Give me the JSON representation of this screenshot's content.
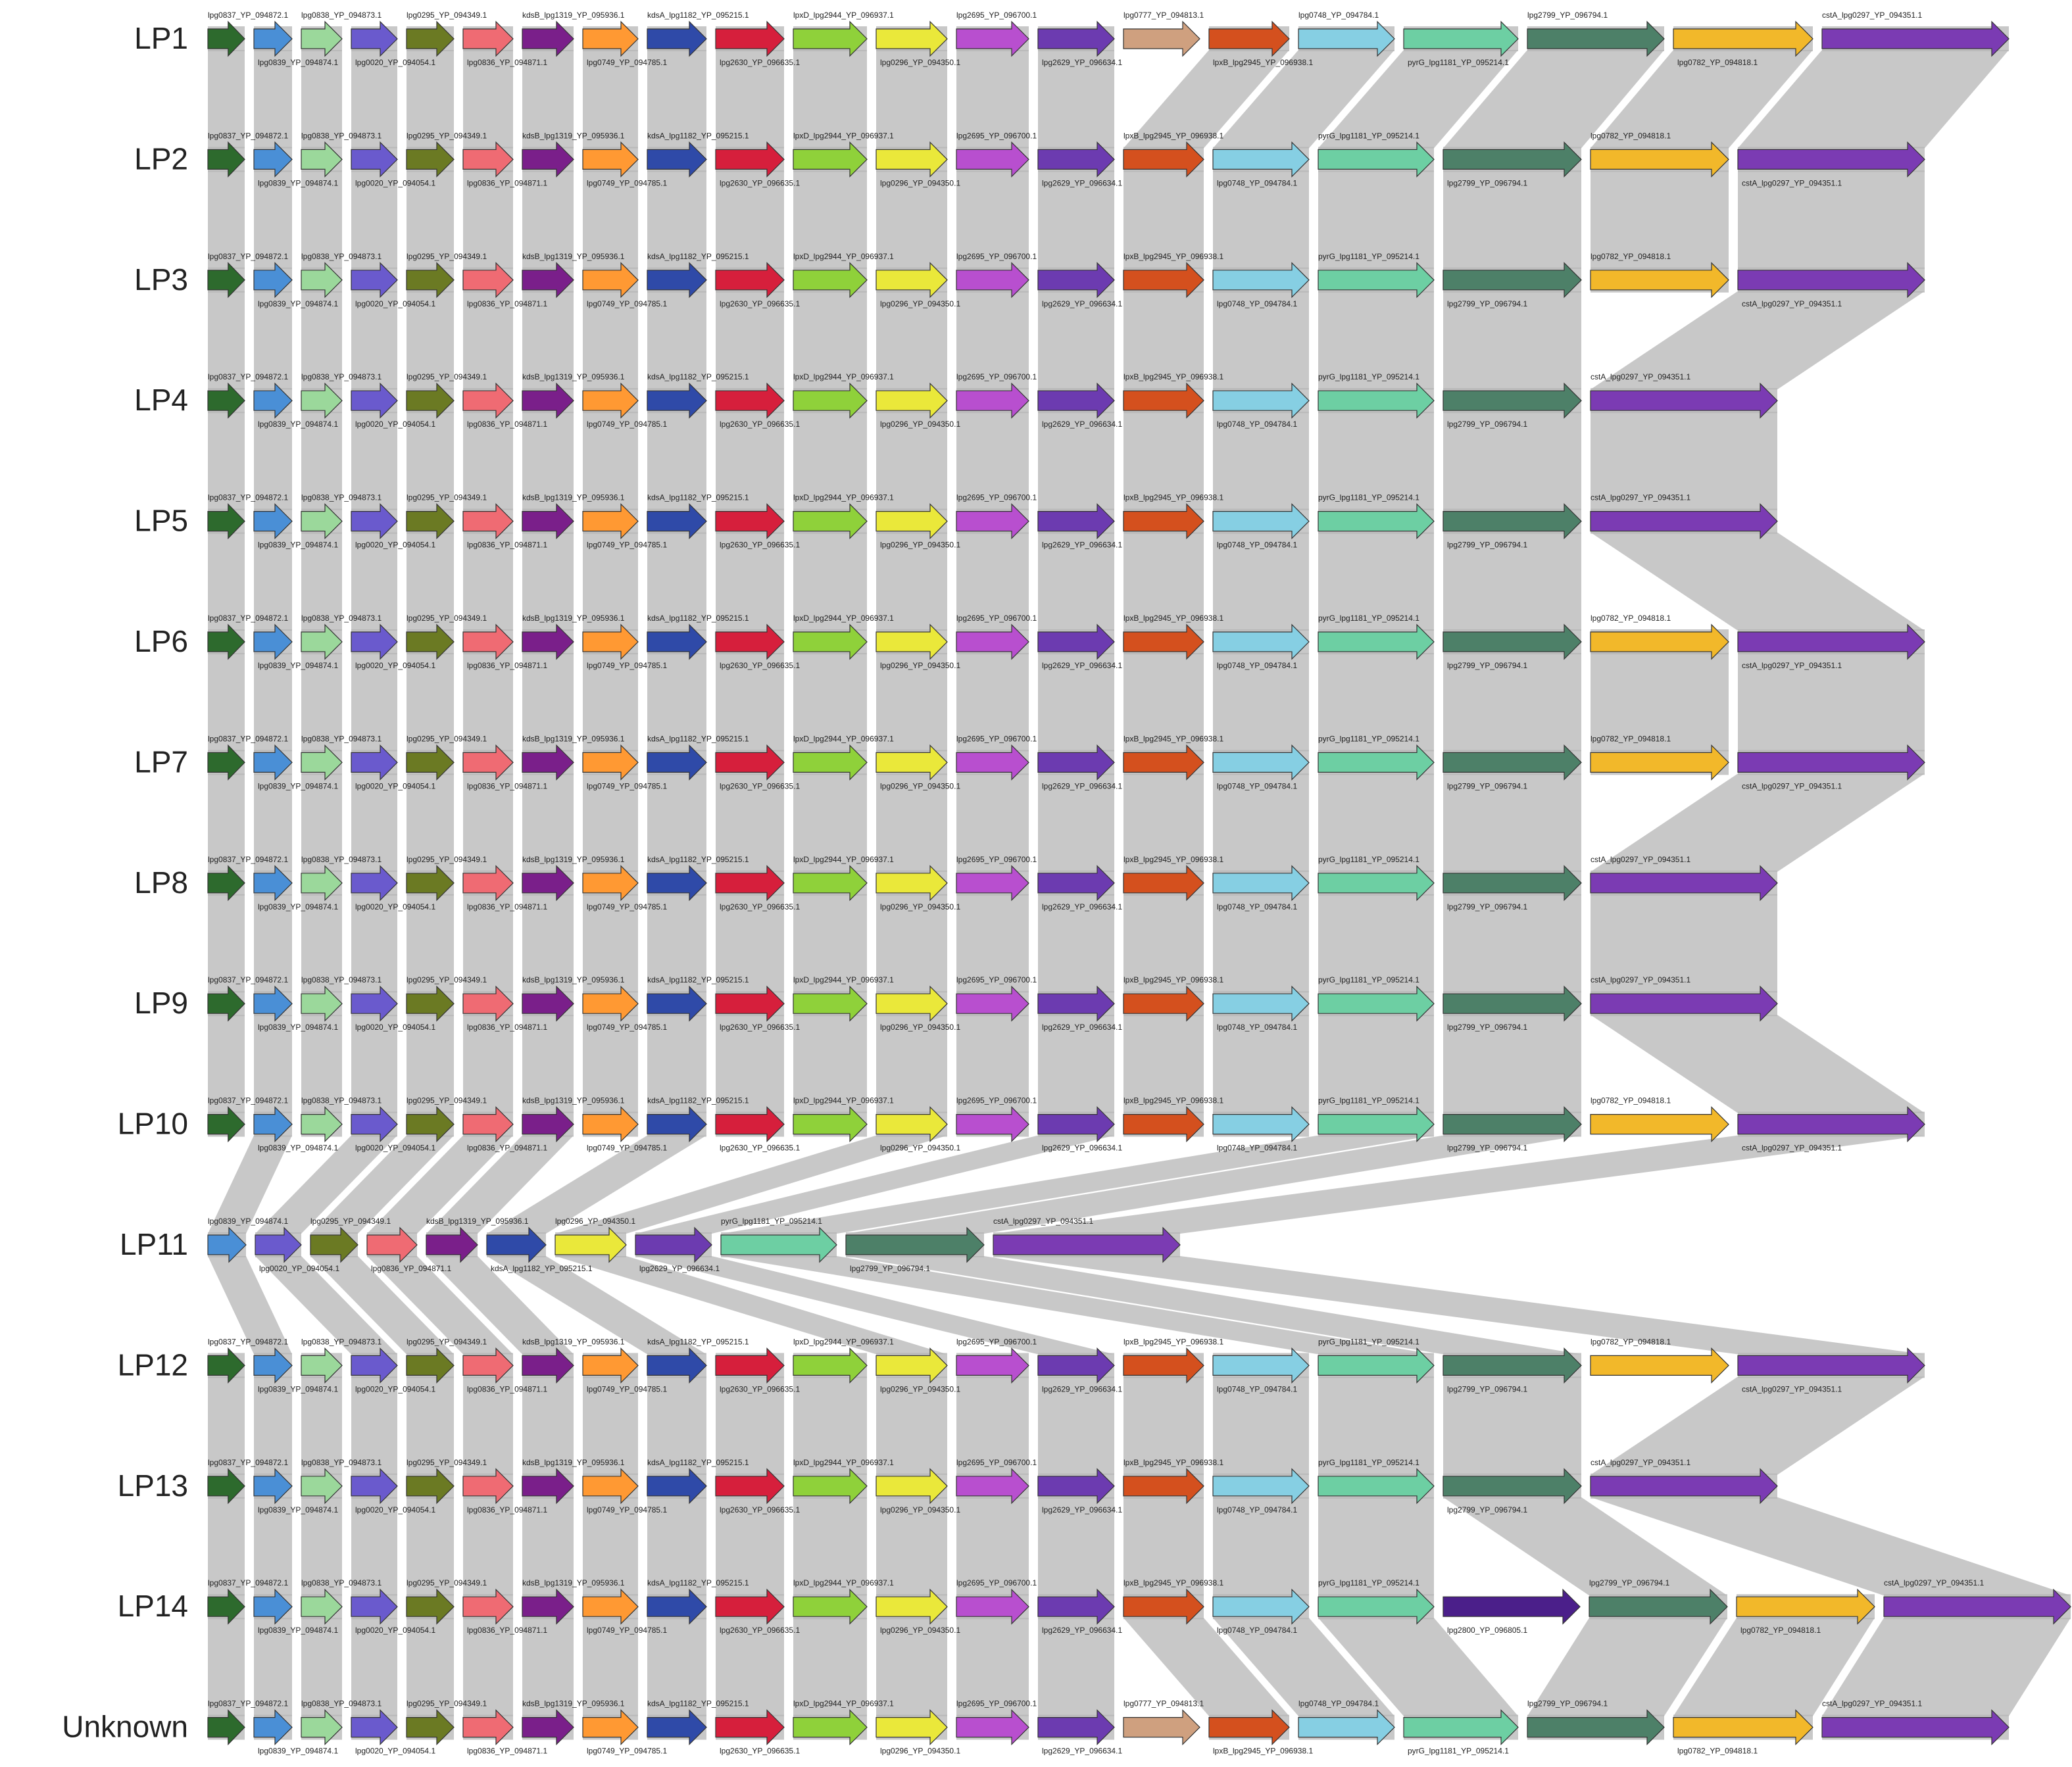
{
  "figure": {
    "type": "gene-synteny-comparison",
    "background": "#ffffff",
    "link_color": "#b3b3b3",
    "gene_order_reference": [
      "lpg0837_YP_094872.1",
      "lpg0839_YP_094874.1",
      "lpg0838_YP_094873.1",
      "lpg0020_YP_094054.1",
      "lpg0295_YP_094349.1",
      "lpg0836_YP_094871.1",
      "kdsB_lpg1319_YP_095936.1",
      "lpg0749_YP_094785.1",
      "kdsA_lpg1182_YP_095215.1",
      "lpg2630_YP_096635.1",
      "lpxD_lpg2944_YP_096937.1",
      "lpg0296_YP_094350.1",
      "lpg2695_YP_096700.1",
      "lpg2629_YP_096634.1",
      "lpg0777_YP_094813.1",
      "lpxB_lpg2945_YP_096938.1",
      "lpg0748_YP_094784.1",
      "pyrG_lpg1181_YP_095214.1",
      "lpg2799_YP_096794.1",
      "lpg0782_YP_094818.1",
      "cstA_lpg0297_YP_094351.1",
      "lpg2800_YP_096805.1"
    ]
  },
  "genes": {
    "lpg0837": {
      "label": "lpg0837_YP_094872.1",
      "color": "#2d6a2d"
    },
    "lpg0839": {
      "label": "lpg0839_YP_094874.1",
      "color": "#4a8fd6"
    },
    "lpg0838": {
      "label": "lpg0838_YP_094873.1",
      "color": "#9bd89b"
    },
    "lpg0020": {
      "label": "lpg0020_YP_094054.1",
      "color": "#6a5acd"
    },
    "lpg0295": {
      "label": "lpg0295_YP_094349.1",
      "color": "#6b7a23"
    },
    "lpg0836": {
      "label": "lpg0836_YP_094871.1",
      "color": "#ef6b73"
    },
    "kdsB": {
      "label": "kdsB_lpg1319_YP_095936.1",
      "color": "#7a1f8a"
    },
    "lpg0749": {
      "label": "lpg0749_YP_094785.1",
      "color": "#ff9933"
    },
    "kdsA": {
      "label": "kdsA_lpg1182_YP_095215.1",
      "color": "#2f4aa8"
    },
    "lpg2630": {
      "label": "lpg2630_YP_096635.1",
      "color": "#d61f3c"
    },
    "lpxD": {
      "label": "lpxD_lpg2944_YP_096937.1",
      "color": "#8fd13a"
    },
    "lpg0296": {
      "label": "lpg0296_YP_094350.1",
      "color": "#eae83a"
    },
    "lpg2695": {
      "label": "lpg2695_YP_096700.1",
      "color": "#b84fcf"
    },
    "lpg2629": {
      "label": "lpg2629_YP_096634.1",
      "color": "#6c3bb0"
    },
    "lpg0777": {
      "label": "lpg0777_YP_094813.1",
      "color": "#cfa07f"
    },
    "lpxB": {
      "label": "lpxB_lpg2945_YP_096938.1",
      "color": "#d4501e"
    },
    "lpg0748": {
      "label": "lpg0748_YP_094784.1",
      "color": "#86cfe3"
    },
    "pyrG": {
      "label": "pyrG_lpg1181_YP_095214.1",
      "color": "#6dcfa3"
    },
    "lpg2799": {
      "label": "lpg2799_YP_096794.1",
      "color": "#4d8068"
    },
    "lpg0782": {
      "label": "lpg0782_YP_094818.1",
      "color": "#f2b82a"
    },
    "cstA": {
      "label": "cstA_lpg0297_YP_094351.1",
      "color": "#7b3bb3"
    },
    "lpg2800": {
      "label": "lpg2800_YP_096805.1",
      "color": "#4b1f8a"
    }
  },
  "tracks": [
    {
      "name": "LP1",
      "genes": [
        "lpg0837",
        "lpg0839",
        "lpg0838",
        "lpg0020",
        "lpg0295",
        "lpg0836",
        "kdsB",
        "lpg0749",
        "kdsA",
        "lpg2630",
        "lpxD",
        "lpg0296",
        "lpg2695",
        "lpg2629",
        "lpg0777",
        "lpxB",
        "lpg0748",
        "pyrG",
        "lpg2799",
        "lpg0782",
        "cstA"
      ]
    },
    {
      "name": "LP2",
      "genes": [
        "lpg0837",
        "lpg0839",
        "lpg0838",
        "lpg0020",
        "lpg0295",
        "lpg0836",
        "kdsB",
        "lpg0749",
        "kdsA",
        "lpg2630",
        "lpxD",
        "lpg0296",
        "lpg2695",
        "lpg2629",
        "lpxB",
        "lpg0748",
        "pyrG",
        "lpg2799",
        "lpg0782",
        "cstA"
      ]
    },
    {
      "name": "LP3",
      "genes": [
        "lpg0837",
        "lpg0839",
        "lpg0838",
        "lpg0020",
        "lpg0295",
        "lpg0836",
        "kdsB",
        "lpg0749",
        "kdsA",
        "lpg2630",
        "lpxD",
        "lpg0296",
        "lpg2695",
        "lpg2629",
        "lpxB",
        "lpg0748",
        "pyrG",
        "lpg2799",
        "lpg0782",
        "cstA"
      ]
    },
    {
      "name": "LP4",
      "genes": [
        "lpg0837",
        "lpg0839",
        "lpg0838",
        "lpg0020",
        "lpg0295",
        "lpg0836",
        "kdsB",
        "lpg0749",
        "kdsA",
        "lpg2630",
        "lpxD",
        "lpg0296",
        "lpg2695",
        "lpg2629",
        "lpxB",
        "lpg0748",
        "pyrG",
        "lpg2799",
        "cstA"
      ]
    },
    {
      "name": "LP5",
      "genes": [
        "lpg0837",
        "lpg0839",
        "lpg0838",
        "lpg0020",
        "lpg0295",
        "lpg0836",
        "kdsB",
        "lpg0749",
        "kdsA",
        "lpg2630",
        "lpxD",
        "lpg0296",
        "lpg2695",
        "lpg2629",
        "lpxB",
        "lpg0748",
        "pyrG",
        "lpg2799",
        "cstA"
      ]
    },
    {
      "name": "LP6",
      "genes": [
        "lpg0837",
        "lpg0839",
        "lpg0838",
        "lpg0020",
        "lpg0295",
        "lpg0836",
        "kdsB",
        "lpg0749",
        "kdsA",
        "lpg2630",
        "lpxD",
        "lpg0296",
        "lpg2695",
        "lpg2629",
        "lpxB",
        "lpg0748",
        "pyrG",
        "lpg2799",
        "lpg0782",
        "cstA"
      ]
    },
    {
      "name": "LP7",
      "genes": [
        "lpg0837",
        "lpg0839",
        "lpg0838",
        "lpg0020",
        "lpg0295",
        "lpg0836",
        "kdsB",
        "lpg0749",
        "kdsA",
        "lpg2630",
        "lpxD",
        "lpg0296",
        "lpg2695",
        "lpg2629",
        "lpxB",
        "lpg0748",
        "pyrG",
        "lpg2799",
        "lpg0782",
        "cstA"
      ]
    },
    {
      "name": "LP8",
      "genes": [
        "lpg0837",
        "lpg0839",
        "lpg0838",
        "lpg0020",
        "lpg0295",
        "lpg0836",
        "kdsB",
        "lpg0749",
        "kdsA",
        "lpg2630",
        "lpxD",
        "lpg0296",
        "lpg2695",
        "lpg2629",
        "lpxB",
        "lpg0748",
        "pyrG",
        "lpg2799",
        "cstA"
      ]
    },
    {
      "name": "LP9",
      "genes": [
        "lpg0837",
        "lpg0839",
        "lpg0838",
        "lpg0020",
        "lpg0295",
        "lpg0836",
        "kdsB",
        "lpg0749",
        "kdsA",
        "lpg2630",
        "lpxD",
        "lpg0296",
        "lpg2695",
        "lpg2629",
        "lpxB",
        "lpg0748",
        "pyrG",
        "lpg2799",
        "cstA"
      ]
    },
    {
      "name": "LP10",
      "genes": [
        "lpg0837",
        "lpg0839",
        "lpg0838",
        "lpg0020",
        "lpg0295",
        "lpg0836",
        "kdsB",
        "lpg0749",
        "kdsA",
        "lpg2630",
        "lpxD",
        "lpg0296",
        "lpg2695",
        "lpg2629",
        "lpxB",
        "lpg0748",
        "pyrG",
        "lpg2799",
        "lpg0782",
        "cstA"
      ]
    },
    {
      "name": "LP11",
      "genes": [
        "lpg0839",
        "lpg0020",
        "lpg0295",
        "lpg0836",
        "kdsB",
        "kdsA",
        "lpg0296",
        "lpg2629",
        "pyrG",
        "lpg2799",
        "cstA"
      ]
    },
    {
      "name": "LP12",
      "genes": [
        "lpg0837",
        "lpg0839",
        "lpg0838",
        "lpg0020",
        "lpg0295",
        "lpg0836",
        "kdsB",
        "lpg0749",
        "kdsA",
        "lpg2630",
        "lpxD",
        "lpg0296",
        "lpg2695",
        "lpg2629",
        "lpxB",
        "lpg0748",
        "pyrG",
        "lpg2799",
        "lpg0782",
        "cstA"
      ]
    },
    {
      "name": "LP13",
      "genes": [
        "lpg0837",
        "lpg0839",
        "lpg0838",
        "lpg0020",
        "lpg0295",
        "lpg0836",
        "kdsB",
        "lpg0749",
        "kdsA",
        "lpg2630",
        "lpxD",
        "lpg0296",
        "lpg2695",
        "lpg2629",
        "lpxB",
        "lpg0748",
        "pyrG",
        "lpg2799",
        "cstA"
      ]
    },
    {
      "name": "LP14",
      "genes": [
        "lpg0837",
        "lpg0839",
        "lpg0838",
        "lpg0020",
        "lpg0295",
        "lpg0836",
        "kdsB",
        "lpg0749",
        "kdsA",
        "lpg2630",
        "lpxD",
        "lpg0296",
        "lpg2695",
        "lpg2629",
        "lpxB",
        "lpg0748",
        "pyrG",
        "lpg2800",
        "lpg2799",
        "lpg0782",
        "cstA"
      ]
    },
    {
      "name": "Unknown",
      "genes": [
        "lpg0837",
        "lpg0839",
        "lpg0838",
        "lpg0020",
        "lpg0295",
        "lpg0836",
        "kdsB",
        "lpg0749",
        "kdsA",
        "lpg2630",
        "lpxD",
        "lpg0296",
        "lpg2695",
        "lpg2629",
        "lpg0777",
        "lpxB",
        "lpg0748",
        "pyrG",
        "lpg2799",
        "lpg0782",
        "cstA"
      ]
    }
  ]
}
